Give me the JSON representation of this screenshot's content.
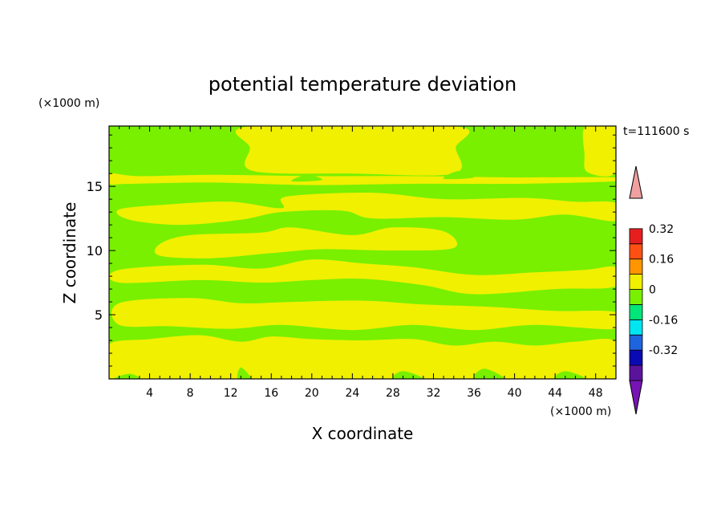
{
  "chart_data": {
    "type": "heatmap",
    "title": "potential temperature deviation",
    "xlabel": "X coordinate",
    "ylabel": "Z coordinate",
    "x_unit": "(×1000 m)",
    "y_unit": "(×1000 m)",
    "time_label": "t=111600 s",
    "xlim": [
      0,
      50
    ],
    "ylim": [
      0,
      19.7
    ],
    "x_ticks": [
      4,
      8,
      12,
      16,
      20,
      24,
      28,
      32,
      36,
      40,
      44,
      48
    ],
    "y_ticks": [
      5,
      10,
      15
    ],
    "grid": false,
    "colorbar": {
      "levels": [
        -0.48,
        -0.4,
        -0.32,
        -0.24,
        -0.16,
        -0.08,
        0,
        0.08,
        0.16,
        0.24,
        0.32,
        0.4,
        0.48
      ],
      "colors": [
        "#5a149b",
        "#0a0ab4",
        "#1e64dc",
        "#00e6f0",
        "#00e678",
        "#78f000",
        "#f0f000",
        "#ff9600",
        "#ff5014",
        "#e61e1e"
      ],
      "over_color": "#f0a0a0",
      "under_color": "#7814b4",
      "labels": [
        "-0.32",
        "-0.16",
        "0",
        "0.16",
        "0.32"
      ],
      "label_values": [
        -0.32,
        -0.16,
        0,
        0.16,
        0.32
      ]
    },
    "field_levels": {
      "base": [
        -0.08,
        0
      ],
      "positive": [
        0,
        0.08
      ]
    },
    "positive_regions": [
      [
        [
          14,
          19.7
        ],
        [
          13.9,
          18
        ],
        [
          14.2,
          16.2
        ],
        [
          24,
          16
        ],
        [
          34,
          16
        ],
        [
          34.2,
          18
        ],
        [
          34,
          19.7
        ]
      ],
      [
        [
          0,
          16
        ],
        [
          3,
          15.8
        ],
        [
          10,
          15.9
        ],
        [
          20,
          15.8
        ],
        [
          30,
          15.8
        ],
        [
          40,
          15.7
        ],
        [
          50,
          15.7
        ],
        [
          50,
          15.4
        ],
        [
          40,
          15.2
        ],
        [
          30,
          15.2
        ],
        [
          20,
          15.1
        ],
        [
          10,
          15.3
        ],
        [
          2,
          15.2
        ],
        [
          0,
          15.2
        ]
      ],
      [
        [
          1,
          13.2
        ],
        [
          6,
          13.6
        ],
        [
          12,
          13.8
        ],
        [
          17,
          13.3
        ],
        [
          17.5,
          14.2
        ],
        [
          26,
          14.5
        ],
        [
          33,
          14.0
        ],
        [
          41,
          14.1
        ],
        [
          46,
          13.8
        ],
        [
          50,
          13.7
        ],
        [
          50,
          12.3
        ],
        [
          45,
          12.8
        ],
        [
          40,
          12.4
        ],
        [
          33,
          12.6
        ],
        [
          26,
          12.5
        ],
        [
          23,
          13.1
        ],
        [
          17,
          13.0
        ],
        [
          13,
          12.4
        ],
        [
          7,
          12.0
        ],
        [
          2,
          12.4
        ]
      ],
      [
        [
          5,
          10.5
        ],
        [
          8,
          11.2
        ],
        [
          15,
          11.4
        ],
        [
          18,
          11.8
        ],
        [
          24,
          11.2
        ],
        [
          28,
          11.8
        ],
        [
          33,
          11.5
        ],
        [
          34,
          10.2
        ],
        [
          28,
          10.0
        ],
        [
          21,
          10.1
        ],
        [
          16,
          9.8
        ],
        [
          10,
          9.4
        ],
        [
          5,
          9.6
        ]
      ],
      [
        [
          1,
          8.5
        ],
        [
          9,
          8.9
        ],
        [
          15,
          8.6
        ],
        [
          20,
          9.3
        ],
        [
          25,
          9.0
        ],
        [
          30,
          8.7
        ],
        [
          36,
          8.1
        ],
        [
          42,
          8.3
        ],
        [
          47,
          8.5
        ],
        [
          50,
          8.7
        ],
        [
          50,
          7.2
        ],
        [
          44,
          7.0
        ],
        [
          36,
          6.6
        ],
        [
          31,
          7.3
        ],
        [
          25,
          7.8
        ],
        [
          20,
          7.7
        ],
        [
          15,
          7.5
        ],
        [
          9,
          7.7
        ],
        [
          1,
          7.5
        ]
      ],
      [
        [
          1,
          5.9
        ],
        [
          8,
          6.3
        ],
        [
          13,
          5.9
        ],
        [
          18,
          6.0
        ],
        [
          25,
          6.1
        ],
        [
          31,
          5.8
        ],
        [
          38,
          5.6
        ],
        [
          44,
          5.3
        ],
        [
          50,
          5.2
        ],
        [
          50,
          3.9
        ],
        [
          42,
          4.2
        ],
        [
          36,
          3.8
        ],
        [
          30,
          4.2
        ],
        [
          24,
          3.8
        ],
        [
          17,
          4.2
        ],
        [
          12,
          3.9
        ],
        [
          6,
          4.1
        ],
        [
          1,
          4.2
        ]
      ],
      [
        [
          0,
          2.7
        ],
        [
          4,
          3.1
        ],
        [
          9,
          3.4
        ],
        [
          13,
          2.9
        ],
        [
          16,
          3.3
        ],
        [
          20,
          3.1
        ],
        [
          25,
          3.0
        ],
        [
          30,
          3.1
        ],
        [
          34,
          2.6
        ],
        [
          38,
          2.9
        ],
        [
          42,
          2.6
        ],
        [
          46,
          2.9
        ],
        [
          50,
          2.9
        ],
        [
          50,
          0
        ],
        [
          0,
          0
        ],
        [
          0,
          0.6
        ]
      ],
      [
        [
          47,
          19.7
        ],
        [
          46.9,
          17.5
        ],
        [
          47.2,
          16.1
        ],
        [
          50,
          16.1
        ],
        [
          50,
          19.7
        ]
      ]
    ],
    "base_regions_on_top": [
      [
        [
          0.5,
          0
        ],
        [
          2,
          0.4
        ],
        [
          3,
          0
        ]
      ],
      [
        [
          12.7,
          0
        ],
        [
          13,
          0.9
        ],
        [
          14,
          0
        ]
      ],
      [
        [
          28,
          0
        ],
        [
          29,
          0.6
        ],
        [
          31,
          0
        ]
      ],
      [
        [
          36,
          0
        ],
        [
          37,
          0.8
        ],
        [
          39,
          0
        ]
      ],
      [
        [
          44,
          0
        ],
        [
          45,
          0.6
        ],
        [
          47,
          0
        ]
      ],
      [
        [
          37,
          11.5
        ],
        [
          38.2,
          12.1
        ],
        [
          40,
          11.9
        ],
        [
          39.5,
          10.9
        ],
        [
          37.8,
          10.8
        ]
      ],
      [
        [
          45.8,
          11.3
        ],
        [
          47,
          11.8
        ],
        [
          48.3,
          11.5
        ],
        [
          47.2,
          10.8
        ]
      ],
      [
        [
          18,
          15.4
        ],
        [
          19.5,
          15.9
        ],
        [
          21,
          15.5
        ]
      ],
      [
        [
          33,
          15.6
        ],
        [
          34.5,
          16.2
        ],
        [
          36,
          15.7
        ]
      ]
    ]
  }
}
